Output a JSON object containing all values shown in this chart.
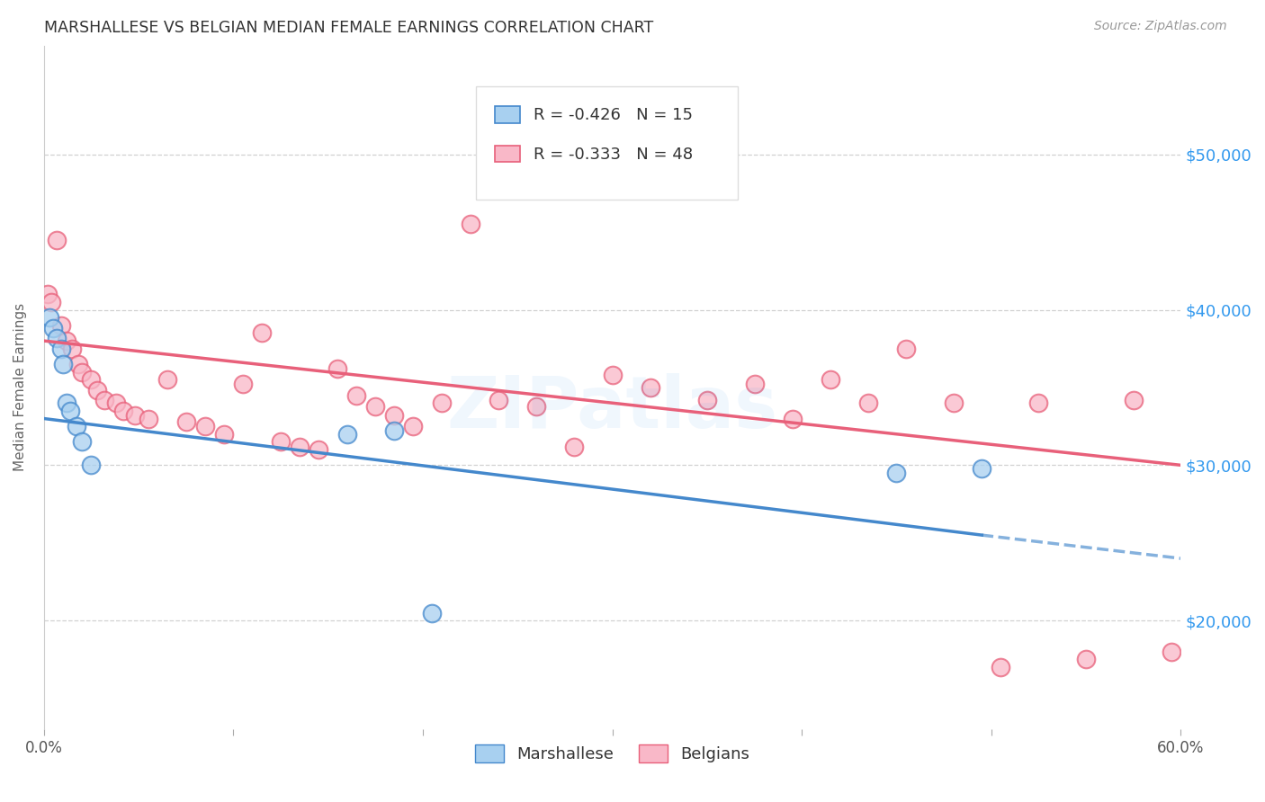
{
  "title": "MARSHALLESE VS BELGIAN MEDIAN FEMALE EARNINGS CORRELATION CHART",
  "source": "Source: ZipAtlas.com",
  "ylabel": "Median Female Earnings",
  "xlim": [
    0.0,
    0.6
  ],
  "ylim": [
    13000,
    57000
  ],
  "y_ticks": [
    20000,
    30000,
    40000,
    50000
  ],
  "y_tick_labels": [
    "$20,000",
    "$30,000",
    "$40,000",
    "$50,000"
  ],
  "x_ticks": [
    0.0,
    0.1,
    0.2,
    0.3,
    0.4,
    0.5,
    0.6
  ],
  "x_tick_labels": [
    "0.0%",
    "",
    "",
    "",
    "",
    "",
    "60.0%"
  ],
  "marshallese_R": -0.426,
  "marshallese_N": 15,
  "belgians_R": -0.333,
  "belgians_N": 48,
  "marshallese_color": "#a8d0f0",
  "belgians_color": "#f9b8c8",
  "marshallese_line_color": "#4488cc",
  "belgians_line_color": "#e8607a",
  "background_color": "#ffffff",
  "watermark": "ZIPatlas",
  "marshallese_x": [
    0.003,
    0.005,
    0.007,
    0.009,
    0.01,
    0.012,
    0.014,
    0.017,
    0.02,
    0.025,
    0.16,
    0.185,
    0.205,
    0.45,
    0.495
  ],
  "marshallese_y": [
    39500,
    38800,
    38200,
    37500,
    36500,
    34000,
    33500,
    32500,
    31500,
    30000,
    32000,
    32200,
    20500,
    29500,
    29800
  ],
  "belgians_x": [
    0.002,
    0.004,
    0.007,
    0.009,
    0.012,
    0.015,
    0.018,
    0.02,
    0.025,
    0.028,
    0.032,
    0.038,
    0.042,
    0.048,
    0.055,
    0.065,
    0.075,
    0.085,
    0.095,
    0.105,
    0.115,
    0.125,
    0.135,
    0.145,
    0.155,
    0.165,
    0.175,
    0.185,
    0.195,
    0.21,
    0.225,
    0.24,
    0.26,
    0.28,
    0.3,
    0.32,
    0.35,
    0.375,
    0.395,
    0.415,
    0.435,
    0.455,
    0.48,
    0.505,
    0.525,
    0.55,
    0.575,
    0.595
  ],
  "belgians_y": [
    41000,
    40500,
    44500,
    39000,
    38000,
    37500,
    36500,
    36000,
    35500,
    34800,
    34200,
    34000,
    33500,
    33200,
    33000,
    35500,
    32800,
    32500,
    32000,
    35200,
    38500,
    31500,
    31200,
    31000,
    36200,
    34500,
    33800,
    33200,
    32500,
    34000,
    45500,
    34200,
    33800,
    31200,
    35800,
    35000,
    34200,
    35200,
    33000,
    35500,
    34000,
    37500,
    34000,
    17000,
    34000,
    17500,
    34200,
    18000
  ],
  "marsh_line_x0": 0.0,
  "marsh_line_y0": 33000,
  "marsh_line_x1": 0.495,
  "marsh_line_y1": 25500,
  "marsh_line_dash_x1": 0.6,
  "marsh_line_dash_y1": 24000,
  "belg_line_x0": 0.0,
  "belg_line_y0": 38000,
  "belg_line_x1": 0.6,
  "belg_line_y1": 30000
}
